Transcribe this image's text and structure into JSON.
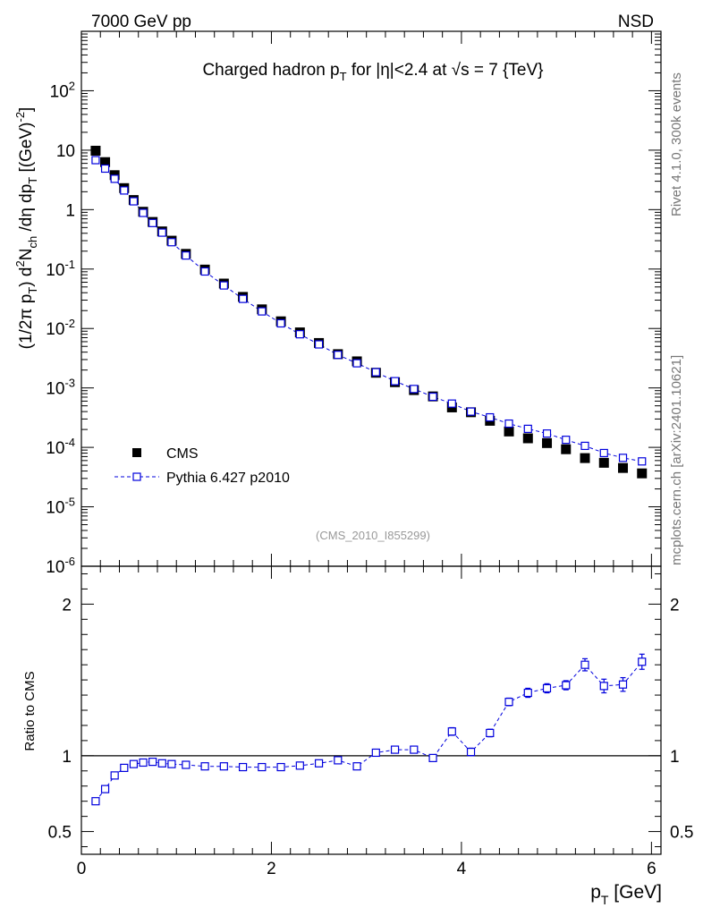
{
  "header": {
    "left": "7000 GeV pp",
    "right": "NSD"
  },
  "side_labels": {
    "rivet": "Rivet 4.1.0,  300k events",
    "mcplots": "mcplots.cern.ch [arXiv:2401.10621]"
  },
  "colors": {
    "cms": "#000000",
    "pythia": "#0000dd",
    "watermark": "#999999"
  },
  "chart_data": [
    {
      "type": "scatter",
      "title": "Charged hadron p_T for |η|<2.4 at √s = 7 {TeV}",
      "ylabel": "(1/2π p_T) d²N_ch/dη dp_T [(GeV)⁻²]",
      "xlabel": "p_T [GeV]",
      "yscale": "log",
      "xlim": [
        0,
        6.1
      ],
      "ylim": [
        1e-06,
        1000
      ],
      "watermark": "(CMS_2010_I855299)",
      "legend": {
        "placement": "center-left",
        "entries": [
          "CMS",
          "Pythia 6.427 p2010"
        ]
      },
      "x": [
        0.15,
        0.25,
        0.35,
        0.45,
        0.55,
        0.65,
        0.75,
        0.85,
        0.95,
        1.1,
        1.3,
        1.5,
        1.7,
        1.9,
        2.1,
        2.3,
        2.5,
        2.7,
        2.9,
        3.1,
        3.3,
        3.5,
        3.7,
        3.9,
        4.1,
        4.3,
        4.5,
        4.7,
        4.9,
        5.1,
        5.3,
        5.5,
        5.7,
        5.9
      ],
      "series": [
        {
          "name": "CMS",
          "marker": "filled-square",
          "values": [
            9.8,
            6.3,
            3.8,
            2.3,
            1.45,
            0.92,
            0.62,
            0.43,
            0.3,
            0.18,
            0.098,
            0.057,
            0.034,
            0.021,
            0.0132,
            0.0086,
            0.0057,
            0.0037,
            0.0028,
            0.0018,
            0.00125,
            0.00092,
            0.00072,
            0.00047,
            0.00039,
            0.00028,
            0.000185,
            0.000142,
            0.000118,
            9.3e-05,
            6.6e-05,
            5.5e-05,
            4.5e-05,
            3.65e-05
          ]
        },
        {
          "name": "Pythia 6.427 p2010",
          "marker": "open-square",
          "line": "dashed",
          "values": [
            6.8,
            4.9,
            3.3,
            2.1,
            1.38,
            0.88,
            0.595,
            0.41,
            0.283,
            0.169,
            0.091,
            0.053,
            0.0315,
            0.0194,
            0.0122,
            0.008,
            0.0054,
            0.0036,
            0.0026,
            0.00184,
            0.0013,
            0.00096,
            0.00071,
            0.000545,
            0.0004,
            0.00032,
            0.000251,
            0.000205,
            0.000171,
            0.000134,
            0.000106,
            8.03e-05,
            6.66e-05,
            5.81e-05
          ]
        }
      ]
    },
    {
      "type": "scatter",
      "ylabel": "Ratio to CMS",
      "xlabel": "p_T [GeV]",
      "xlim": [
        0,
        6.1
      ],
      "ylim": [
        0.35,
        2.25
      ],
      "y_ticks": [
        "0.5",
        "1",
        "2"
      ],
      "x_ticks": [
        "0",
        "2",
        "4",
        "6"
      ],
      "reference_line": 1,
      "x": [
        0.15,
        0.25,
        0.35,
        0.45,
        0.55,
        0.65,
        0.75,
        0.85,
        0.95,
        1.1,
        1.3,
        1.5,
        1.7,
        1.9,
        2.1,
        2.3,
        2.5,
        2.7,
        2.9,
        3.1,
        3.3,
        3.5,
        3.7,
        3.9,
        4.1,
        4.3,
        4.5,
        4.7,
        4.9,
        5.1,
        5.3,
        5.5,
        5.7,
        5.9
      ],
      "series": [
        {
          "name": "Pythia 6.427 p2010",
          "marker": "open-square",
          "line": "dashed",
          "values": [
            0.7,
            0.78,
            0.87,
            0.92,
            0.945,
            0.955,
            0.96,
            0.95,
            0.945,
            0.94,
            0.93,
            0.93,
            0.925,
            0.925,
            0.925,
            0.935,
            0.95,
            0.97,
            0.93,
            1.02,
            1.04,
            1.04,
            0.985,
            1.16,
            1.025,
            1.15,
            1.355,
            1.415,
            1.445,
            1.465,
            1.6,
            1.46,
            1.47,
            1.62
          ],
          "errors": [
            0.01,
            0.01,
            0.01,
            0.01,
            0.01,
            0.01,
            0.01,
            0.01,
            0.01,
            0.01,
            0.01,
            0.01,
            0.01,
            0.01,
            0.01,
            0.01,
            0.01,
            0.015,
            0.015,
            0.015,
            0.02,
            0.02,
            0.02,
            0.025,
            0.025,
            0.025,
            0.025,
            0.03,
            0.03,
            0.03,
            0.04,
            0.045,
            0.045,
            0.05
          ]
        }
      ]
    }
  ]
}
